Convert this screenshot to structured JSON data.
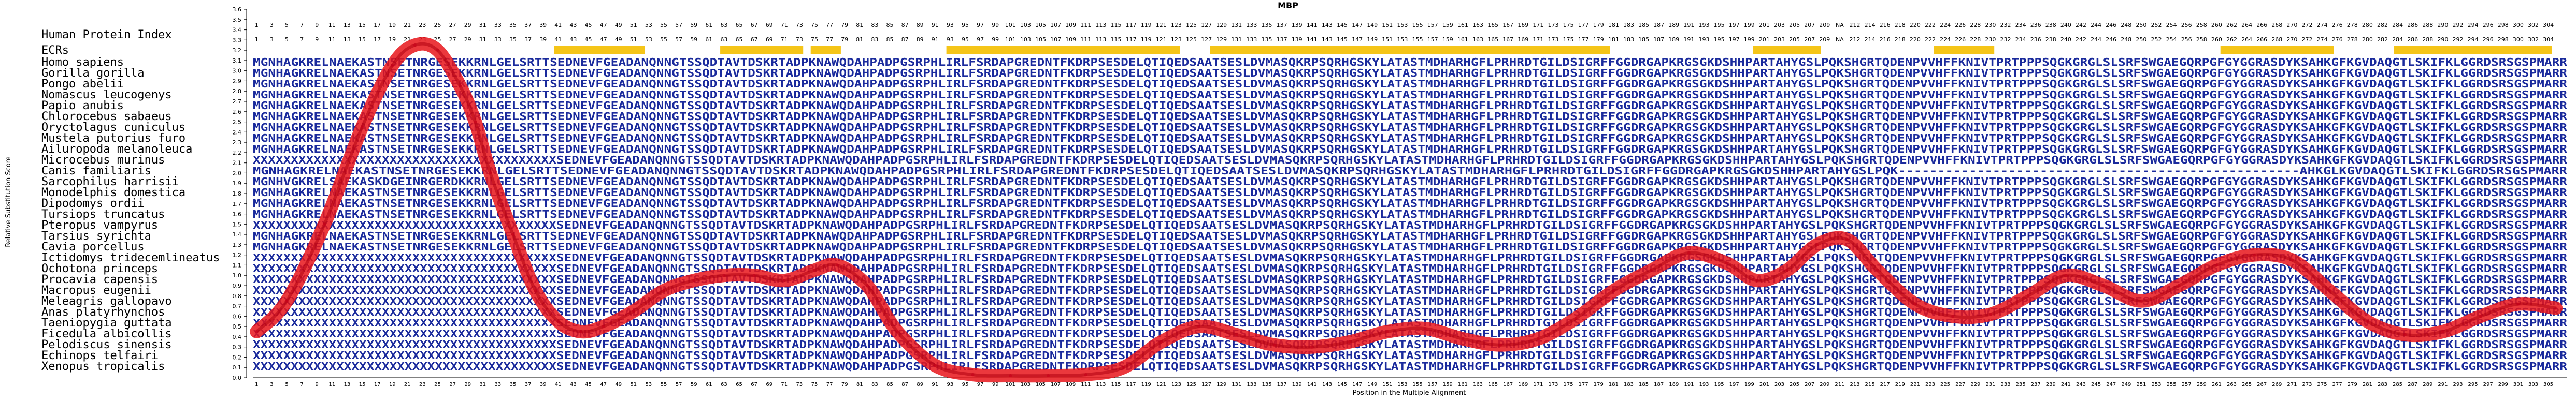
{
  "chart_data": {
    "type": "line",
    "title": "MBP",
    "xlabel": "Position in the Multiple Alignment",
    "ylabel": "Relative Substitution Score",
    "ylim": [
      0,
      3.6
    ],
    "yticks": [
      "0.0",
      "0.1",
      "0.2",
      "0.3",
      "0.4",
      "0.5",
      "0.6",
      "0.7",
      "0.8",
      "0.9",
      "1.0",
      "1.1",
      "1.2",
      "1.3",
      "1.4",
      "1.5",
      "1.6",
      "1.7",
      "1.8",
      "1.9",
      "2.0",
      "2.1",
      "2.2",
      "2.3",
      "2.4",
      "2.5",
      "2.6",
      "2.7",
      "2.8",
      "2.9",
      "3.0",
      "3.1",
      "3.2",
      "3.3",
      "3.4",
      "3.5",
      "3.6"
    ],
    "xlim": [
      1,
      307
    ],
    "label_headers": [
      "Human Protein Index",
      "ECRs"
    ],
    "top_index_labels": [
      "1",
      "3",
      "5",
      "7",
      "9",
      "11",
      "13",
      "15",
      "17",
      "19",
      "21",
      "23",
      "25",
      "27",
      "29",
      "31",
      "33",
      "35",
      "37",
      "39",
      "41",
      "43",
      "45",
      "47",
      "49",
      "51",
      "53",
      "55",
      "57",
      "59",
      "61",
      "63",
      "65",
      "67",
      "69",
      "71",
      "73",
      "75",
      "77",
      "79",
      "81",
      "83",
      "85",
      "87",
      "89",
      "91",
      "93",
      "95",
      "97",
      "99",
      "101",
      "103",
      "105",
      "107",
      "109",
      "111",
      "113",
      "115",
      "117",
      "119",
      "121",
      "123",
      "125",
      "127",
      "129",
      "131",
      "133",
      "135",
      "137",
      "139",
      "141",
      "143",
      "145",
      "147",
      "149",
      "151",
      "153",
      "155",
      "157",
      "159",
      "161",
      "163",
      "165",
      "167",
      "169",
      "171",
      "173",
      "175",
      "177",
      "179",
      "181",
      "183",
      "185",
      "187",
      "189",
      "191",
      "193",
      "195",
      "197",
      "199",
      "201",
      "203",
      "205",
      "207",
      "209",
      "NA",
      "212",
      "214",
      "216",
      "218",
      "220",
      "222",
      "224",
      "226",
      "228",
      "230",
      "232",
      "234",
      "236",
      "238",
      "240",
      "242",
      "244",
      "246",
      "248",
      "250",
      "252",
      "254",
      "256",
      "258",
      "260",
      "262",
      "264",
      "266",
      "268",
      "270",
      "272",
      "274",
      "276",
      "278",
      "280",
      "282",
      "284",
      "286",
      "288",
      "290",
      "292",
      "294",
      "296",
      "298",
      "300",
      "302",
      "304"
    ],
    "ecr_blocks": [
      [
        41,
        52
      ],
      [
        63,
        73
      ],
      [
        75,
        78
      ],
      [
        93,
        123
      ],
      [
        128,
        180
      ],
      [
        200,
        208
      ],
      [
        224,
        231
      ],
      [
        262,
        276
      ],
      [
        285,
        305
      ]
    ],
    "species": [
      "Homo sapiens",
      "Gorilla gorilla",
      "Pongo abelii",
      "Nomascus leucogenys",
      "Papio anubis",
      "Chlorocebus sabaeus",
      "Oryctolagus cuniculus",
      "Mustela putorius furo",
      "Ailuropoda melanoleuca",
      "Microcebus murinus",
      "Canis familiaris",
      "Sarcophilus harrisii",
      "Monodelphis domestica",
      "Dipodomys ordii",
      "Tursiops truncatus",
      "Pteropus vampyrus",
      "Tarsius syrichta",
      "Cavia porcellus",
      "Ictidomys tridecemlineatus",
      "Ochotona princeps",
      "Procavia capensis",
      "Macropus eugenii",
      "Meleagris gallopavo",
      "Anas platyrhynchos",
      "Taeniopygia guttata",
      "Ficedula albicollis",
      "Pelodiscus sinensis",
      "Echinops telfairi",
      "Xenopus tropicalis"
    ],
    "alignment_rows": [
      "MGNHAGKRELNAEKASTNSETNRGESEKKRNLGELSRTTSEDNEVFGEADANQNNGTSSQDTAVTDSKRTADPKNAWQDAHPADPGSRPHLIRLFSRDAPGREDNTFKDRPSESDELQTIQEDSAATSESLDVMASQKRPSQRHGSKYLATASTMDHARHGFLPRHRDTGILDSIGRFFGGDRGAPKRGSGKDSHHPARTAHYGSLPQKSHGRTQDENPVVHFFKNIVTPRTPPPSQGKGRGLSLSRFSWGAEGQRPGFGYGGRASDYKSAHKGFKGVDAQGTLSKIFKLGGRDSRSGSPMARR",
      "MGNHAGKRELNAEKASTNSETNRGESEKKRNLGELSRTTSEDNEVFGEADANQNNGTSSQDTAVTDSKRTADPKNAWQDAHPADPGSRPHLIRLFSRDAPGREDNTFKDRPSESDELQTIQEDSAATSESLDVMASQKRPSQRHGSKYLATASTMDHARHGFLPRHRDTGILDSIGRFFGGDRGAPKRGSGKDSHHPARTAHYGSLPQKSHGRTQDENPVVHFFKNIVTPRTPPPSQGKGRGLSLSRFSWGAEGQRPGFGYGGRASDYKSAHKGFKGVDAQGTLSKIFKLGGRDSRSGSPMARR",
      "MGNHAGKRELNAEKASTNSETNRGESEKKRNLGELSRTTSEDNEVFGEADANQNNGTSSQDTAVTDSKRTADPKNAWQDAHPADPGSRPHLIRLFSRDAPGREDNTFKDRPSESDELQTIQEDSAATSESLDVMASQKRPSQRHGSKYLATASTMDHARHGFLPRHRDTGILDSIGRFFGGDRGAPKRGSGKDSHHPARTAHYGSLPQKSHGRTQDENPVVHFFKNIVTPRTPPPSQGKGRGLSLSRFSWGAEGQRPGFGYGGRASDYKSAHKGFKGVDAQGTLSKIFKLGGRDSRSGSPMARR",
      "MGNHAGKRELNAEKASTNSETNRGESEKKRNLGELSRTTSEDNEVFGEADANQNNGTSSQDTAVTDSKRTADPKNAWQDAHPADPGSRPHLIRLFSRDAPGREDNTFKDRPSESDELQTIQEDSAATSESLDVMASQKRPSQRHGSKYLATASTMDHARHGFLPRHRDTGILDSIGRFFGGDRGAPKRGSGKDSHHPARTAHYGSLPQKSHGRTQDENPVVHFFKNIVTPRTPPPSQGKGRGLSLSRFSWGAEGQRPGFGYGGRASDYKSAHKGFKGVDAQGTLSKIFKLGGRDSRSGSPMARR",
      "MGNHAGKRELNAEKASTNSETNRGESEKKRNLGELSRTTSEDNEVFGEADANQNNGTSSQDTAVTDSKRTADPKNAWQDAHPADPGSRPHLIRLFSRDAPGREDNTFKDRPSESDELQTIQEDSAATSESLDVMASQKRPSQRHGSKYLATASTMDHARHGFLPRHRDTGILDSIGRFFGGDRGAPKRGSGKDSHHPARTAHYGSLPQKSHGRTQDENPVVHFFKNIVTPRTPPPSQGKGRGLSLSRFSWGAEGQRPGFGYGGRASDYKSAHKGFKGVDAQGTLSKIFKLGGRDSRSGSPMARR",
      "MGNHAGKRELNAEKASTNSETNRGESEKKRNLGELSRTTSEDNEVFGEADANQNNGTSSQDTAVTDSKRTADPKNAWQDAHPADPGSRPHLIRLFSRDAPGREDNTFKDRPSESDELQTIQEDSAATSESLDVMASQKRPSQRHGSKYLATASTMDHARHGFLPRHRDTGILDSIGRFFGGDRGAPKRGSGKDSHHPARTAHYGSLPQKSHGRTQDENPVVHFFKNIVTPRTPPPSQGKGRGLSLSRFSWGAEGQRPGFGYGGRASDYKSAHKGFKGVDAQGTLSKIFKLGGRDSRSGSPMARR",
      "MGNHAGKRELNAEKASTNSETNRGESEKKRNLGELSRTTSEDNEVFGEADANQNNGTSSQDTAVTDSKRTADPKNAWQDAHPADPGSRPHLIRLFSRDAPGREDNTFKDRPSESDELQTIQEDSAATSESLDVMASQKRPSQRHGSKYLATASTMDHARHGFLPRHRDTGILDSIGRFFGGDRGAPKRGSGKDSHHPARTAHYGSLPQKSHGRTQDENPVVHFFKNIVTPRTPPPSQGKGRGLSLSRFSWGAEGQRPGFGYGGRASDYKSAHKGFKGVDAQGTLSKIFKLGGRDSRSGSPMARR",
      "MGNHAGKRELNAEKASTNSETNRGESEKKRNLGELSRTTSEDNEVFGEADANQNNGTSSQDTAVTDSKRTADPKNAWQDAHPADPGSRPHLIRLFSRDAPGREDNTFKDRPSESDELQTIQEDSAATSESLDVMASQKRPSQRHGSKYLATASTMDHARHGFLPRHRDTGILDSIGRFFGGDRGAPKRGSGKDSHHPARTAHYGSLPQKSHGRTQDENPVVHFFKNIVTPRTPPPSQGKGRGLSLSRFSWGAEGQRPGFGYGGRASDYKSAHKGFKGVDAQGTLSKIFKLGGRDSRSGSPMARR",
      "MGNHAGKRELNAEKASTNSETNRGESEKKRNLGELSRTTSEDNEVFGEADANQNNGTSSQDTAVTDSKRTADPKNAWQDAHPADPGSRPHLIRLFSRDAPGREDNTFKDRPSESDELQTIQEDSAATSESLDVMASQKRPSQRHGSKYLATASTMDHARHGFLPRHRDTGILDSIGRFFGGDRGAPKRGSGKDSHHPARTAHYGSLPQKSHGRTQDENPVVHFFKNIVTPRTPPPSQGKGRGLSLSRFSWGAEGQRPGFGYGGRASDYKSAHKGFKGVDAQGTLSKIFKLGGRDSRSGSPMARR",
      "XXXXXXXXXXXXXXXXXXXXXXXXXXXXXXXXXXXXXXXXSEDNEVFGEADANQNNGTSSQDTAVTDSKRTADPKNAWQDAHPADPGSRPHLIRLFSRDAPGREDNTFKDRPSESDELQTIQEDSAATSESLDVMASQKRPSQRHGSKYLATASTMDHARHGFLPRHRDTGILDSIGRFFGGDRGAPKRGSGKDSHHPARTAHYGSLPQKSHGRTQDENPVVHFFKNIVTPRTPPPSQGKGRGLSLSRFSWGAEGQRPGFGYGGRASDYKSAHKGFKGVDAQGTLSKIFKLGGRDSRSGSPMARR",
      "MGNHAGKRELNAEKASTNSETNRGESEKKRNLGELSRTTSEDNEVFGEADANQNNGTSSQDTAVTDSKRTADPKNAWQDAHPADPGSRPHLIRLFSRDAPGREDNTFKDRPSESDELQTIQEDSAATSESLDVMASQKRPSQRHGSKYLATASTMDHARHGFLPRHRDTGILDSIGRFFGGDRGAPKRGSGKDSHHPARTAHYGSLPQK---------------------------------------------------AHKGLKGVDAQGTLSKIFKLGGRDSRSGSPMARR",
      "MGNHVGKRELSAEKASKDGEINRGERDKKRNLGELSRTTSEDNEVFGEADANQNNGTSSQDTAVTDSKRTADPKNAWQDAHPADPGSRPHLIRLFSRDAPGREDNTFKDRPSESDELQTIQEDSAATSESLDVMASQKRPSQRHGSKYLATASTMDHARHGFLPRHRDTGILDSIGRFFGGDRGAPKRGSGKDSHHPARTAHYGSLPQKSHGRTQDENPVVHFFKNIVTPRTPPPSQGKGRGLSLSRFSWGAEGQRPGFGYGGRASDYKSAHKGFKGVDAQGTLSKIFKLGGRDSRSGSPMARR",
      "MGNHAGKRELNAEKASTNSETNRGESEKKRNLGELSRTTSEDNEVFGEADANQNNGTSSQDTAVTDSKRTADPKNAWQDAHPADPGSRPHLIRLFSRDAPGREDNTFKDRPSESDELQTIQEDSAATSESLDVMASQKRPSQRHGSKYLATASTMDHARHGFLPRHRDTGILDSIGRFFGGDRGAPKRGSGKDSHHPARTAHYGSLPQKSHGRTQDENPVVHFFKNIVTPRTPPPSQGKGRGLSLSRFSWGAEGQRPGFGYGGRASDYKSAHKGFKGVDAQGTLSKIFKLGGRDSRSGSPMARR",
      "MGNHAGKRELNAEKASTNSETNRGESEKKRNLGELSRTTSEDNEVFGEADANQNNGTSSQDTAVTDSKRTADPKNAWQDAHPADPGSRPHLIRLFSRDAPGREDNTFKDRPSESDELQTIQEDSAATSESLDVMASQKRPSQRHGSKYLATASTMDHARHGFLPRHRDTGILDSIGRFFGGDRGAPKRGSGKDSHHPARTAHYGSLPQKSHGRTQDENPVVHFFKNIVTPRTPPPSQGKGRGLSLSRFSWGAEGQRPGFGYGGRASDYKSAHKGFKGVDAQGTLSKIFKLGGRDSRSGSPMARR",
      "MGNHAGKRELNAEKASTNSETNRGESEKKRNLGELSRTTSEDNEVFGEADANQNNGTSSQDTAVTDSKRTADPKNAWQDAHPADPGSRPHLIRLFSRDAPGREDNTFKDRPSESDELQTIQEDSAATSESLDVMASQKRPSQRHGSKYLATASTMDHARHGFLPRHRDTGILDSIGRFFGGDRGAPKRGSGKDSHHPARTAHYGSLPQKSHGRTQDENPVVHFFKNIVTPRTPPPSQGKGRGLSLSRFSWGAEGQRPGFGYGGRASDYKSAHKGFKGVDAQGTLSKIFKLGGRDSRSGSPMARR",
      "XXXXXXXXXXXXXXXXXXXXXXXXXXXXXXXXXXXXXXXXSEDNEVFGEADANQNNGTSSQDTAVTDSKRTADPKNAWQDAHPADPGSRPHLIRLFSRDAPGREDNTFKDRPSESDELQTIQEDSAATSESLDVMASQKRPSQRHGSKYLATASTMDHARHGFLPRHRDTGILDSIGRFFGGDRGAPKRGSGKDSHHPARTAHYGSLPQKSHGRTQDENPVVHFFKNIVTPRTPPPSQGKGRGLSLSRFSWGAEGQRPGFGYGGRASDYKSAHKGFKGVDAQGTLSKIFKLGGRDSRSGSPMARR",
      "MGNHAGKRELNAEKASTNSETNRGESEKKRNLGELSRTTSEDNEVFGEADANQNNGTSSQDTAVTDSKRTADPKNAWQDAHPADPGSRPHLIRLFSRDAPGREDNTFKDRPSESDELQTIQEDSAATSESLDVMASQKRPSQRHGSKYLATASTMDHARHGFLPRHRDTGILDSIGRFFGGDRGAPKRGSGKDSHHPARTAHYGSLPQKSHGRTQDENPVVHFFKNIVTPRTPPPSQGKGRGLSLSRFSWGAEGQRPGFGYGGRASDYKSAHKGFKGVDAQGTLSKIFKLGGRDSRSGSPMARR",
      "MGNHAGKRELNAEKASTNSETNRGESEKKRNLGELSRTTSEDNEVFGEADANQNNGTSSQDTAVTDSKRTADPKNAWQDAHPADPGSRPHLIRLFSRDAPGREDNTFKDRPSESDELQTIQEDSAATSESLDVMASQKRPSQRHGSKYLATASTMDHARHGFLPRHRDTGILDSIGRFFGGDRGAPKRGSGKDSHHPARTAHYGSLPQKSHGRTQDENPVVHFFKNIVTPRTPPPSQGKGRGLSLSRFSWGAEGQRPGFGYGGRASDYKSAHKGFKGVDAQGTLSKIFKLGGRDSRSGSPMARR",
      "XXXXXXXXXXXXXXXXXXXXXXXXXXXXXXXXXXXXXXXXSEDNEVFGEADANQNNGTSSQDTAVTDSKRTADPKNAWQDAHPADPGSRPHLIRLFSRDAPGREDNTFKDRPSESDELQTIQEDSAATSESLDVMASQKRPSQRHGSKYLATASTMDHARHGFLPRHRDTGILDSIGRFFGGDRGAPKRGSGKDSHHPARTAHYGSLPQKSHGRTQDENPVVHFFKNIVTPRTPPPSQGKGRGLSLSRFSWGAEGQRPGFGYGGRASDYKSAHKGFKGVDAQGTLSKIFKLGGRDSRSGSPMARR",
      "XXXXXXXXXXXXXXXXXXXXXXXXXXXXXXXXXXXXXXXXSEDNEVFGEADANQNNGTSSQDTAVTDSKRTADPKNAWQDAHPADPGSRPHLIRLFSRDAPGREDNTFKDRPSESDELQTIQEDSAATSESLDVMASQKRPSQRHGSKYLATASTMDHARHGFLPRHRDTGILDSIGRFFGGDRGAPKRGSGKDSHHPARTAHYGSLPQKSHGRTQDENPVVHFFKNIVTPRTPPPSQGKGRGLSLSRFSWGAEGQRPGFGYGGRASDYKSAHKGFKGVDAQGTLSKIFKLGGRDSRSGSPMARR",
      "XXXXXXXXXXXXXXXXXXXXXXXXXXXXXXXXXXXXXXXXSEDNEVFGEADANQNNGTSSQDTAVTDSKRTADPKNAWQDAHPADPGSRPHLIRLFSRDAPGREDNTFKDRPSESDELQTIQEDSAATSESLDVMASQKRPSQRHGSKYLATASTMDHARHGFLPRHRDTGILDSIGRFFGGDRGAPKRGSGKDSHHPARTAHYGSLPQKSHGRTQDENPVVHFFKNIVTPRTPPPSQGKGRGLSLSRFSWGAEGQRPGFGYGGRASDYKSAHKGFKGVDAQGTLSKIFKLGGRDSRSGSPMARR",
      "XXXXXXXXXXXXXXXXXXXXXXXXXXXXXXXXXXXXXXXXSEDNEVFGEADANQNNGTSSQDTAVTDSKRTADPKNAWQDAHPADPGSRPHLIRLFSRDAPGREDNTFKDRPSESDELQTIQEDSAATSESLDVMASQKRPSQRHGSKYLATASTMDHARHGFLPRHRDTGILDSIGRFFGGDRGAPKRGSGKDSHHPARTAHYGSLPQKSHGRTQDENPVVHFFKNIVTPRTPPPSQGKGRGLSLSRFSWGAEGQRPGFGYGGRASDYKSAHKGFKGVDAQGTLSKIFKLGGRDSRSGSPMARR",
      "XXXXXXXXXXXXXXXXXXXXXXXXXXXXXXXXXXXXXXXXSEDNEVFGEADANQNNGTSSQDTAVTDSKRTADPKNAWQDAHPADPGSRPHLIRLFSRDAPGREDNTFKDRPSESDELQTIQEDSAATSESLDVMASQKRPSQRHGSKYLATASTMDHARHGFLPRHRDTGILDSIGRFFGGDRGAPKRGSGKDSHHPARTAHYGSLPQKSHGRTQDENPVVHFFKNIVTPRTPPPSQGKGRGLSLSRFSWGAEGQRPGFGYGGRASDYKSAHKGFKGVDAQGTLSKIFKLGGRDSRSGSPMARR",
      "XXXXXXXXXXXXXXXXXXXXXXXXXXXXXXXXXXXXXXXXSEDNEVFGEADANQNNGTSSQDTAVTDSKRTADPKNAWQDAHPADPGSRPHLIRLFSRDAPGREDNTFKDRPSESDELQTIQEDSAATSESLDVMASQKRPSQRHGSKYLATASTMDHARHGFLPRHRDTGILDSIGRFFGGDRGAPKRGSGKDSHHPARTAHYGSLPQKSHGRTQDENPVVHFFKNIVTPRTPPPSQGKGRGLSLSRFSWGAEGQRPGFGYGGRASDYKSAHKGFKGVDAQGTLSKIFKLGGRDSRSGSPMARR",
      "XXXXXXXXXXXXXXXXXXXXXXXXXXXXXXXXXXXXXXXXSEDNEVFGEADANQNNGTSSQDTAVTDSKRTADPKNAWQDAHPADPGSRPHLIRLFSRDAPGREDNTFKDRPSESDELQTIQEDSAATSESLDVMASQKRPSQRHGSKYLATASTMDHARHGFLPRHRDTGILDSIGRFFGGDRGAPKRGSGKDSHHPARTAHYGSLPQKSHGRTQDENPVVHFFKNIVTPRTPPPSQGKGRGLSLSRFSWGAEGQRPGFGYGGRASDYKSAHKGFKGVDAQGTLSKIFKLGGRDSRSGSPMARR",
      "XXXXXXXXXXXXXXXXXXXXXXXXXXXXXXXXXXXXXXXXSEDNEVFGEADANQNNGTSSQDTAVTDSKRTADPKNAWQDAHPADPGSRPHLIRLFSRDAPGREDNTFKDRPSESDELQTIQEDSAATSESLDVMASQKRPSQRHGSKYLATASTMDHARHGFLPRHRDTGILDSIGRFFGGDRGAPKRGSGKDSHHPARTAHYGSLPQKSHGRTQDENPVVHFFKNIVTPRTPPPSQGKGRGLSLSRFSWGAEGQRPGFGYGGRASDYKSAHKGFKGVDAQGTLSKIFKLGGRDSRSGSPMARR",
      "XXXXXXXXXXXXXXXXXXXXXXXXXXXXXXXXXXXXXXXXSEDNEVFGEADANQNNGTSSQDTAVTDSKRTADPKNAWQDAHPADPGSRPHLIRLFSRDAPGREDNTFKDRPSESDELQTIQEDSAATSESLDVMASQKRPSQRHGSKYLATASTMDHARHGFLPRHRDTGILDSIGRFFGGDRGAPKRGSGKDSHHPARTAHYGSLPQKSHGRTQDENPVVHFFKNIVTPRTPPPSQGKGRGLSLSRFSWGAEGQRPGFGYGGRASDYKSAHKGFKGVDAQGTLSKIFKLGGRDSRSGSPMARR",
      "XXXXXXXXXXXXXXXXXXXXXXXXXXXXXXXXXXXXXXXXSEDNEVFGEADANQNNGTSSQDTAVTDSKRTADPKNAWQDAHPADPGSRPHLIRLFSRDAPGREDNTFKDRPSESDELQTIQEDSAATSESLDVMASQKRPSQRHGSKYLATASTMDHARHGFLPRHRDTGILDSIGRFFGGDRGAPKRGSGKDSHHPARTAHYGSLPQKSHGRTQDENPVVHFFKNIVTPRTPPPSQGKGRGLSLSRFSWGAEGQRPGFGYGGRASDYKSAHKGFKGVDAQGTLSKIFKLGGRDSRSGSPMARR",
      "XXXXXXXXXXXXXXXXXXXXXXXXXXXXXXXXXXXXXXXXSEDNEVFGEADANQNNGTSSQDTAVTDSKRTADPKNAWQDAHPADPGSRPHLIRLFSRDAPGREDNTFKDRPSESDELQTIQEDSAATSESLDVMASQKRPSQRHGSKYLATASTMDHARHGFLPRHRDTGILDSIGRFFGGDRGAPKRGSGKDSHHPARTAHYGSLPQKSHGRTQDENPVVHFFKNIVTPRTPPPSQGKGRGLSLSRFSWGAEGQRPGFGYGGRASDYKSAHKGFKGVDAQGTLSKIFKLGGRDSRSGSPMARR"
    ],
    "series": [
      {
        "x": [
          1,
          5,
          10,
          15,
          19,
          22,
          25,
          28,
          30,
          32,
          35,
          38,
          41,
          44,
          47,
          51,
          55,
          59,
          63,
          67,
          71,
          75,
          78,
          82,
          86,
          91,
          96,
          101,
          106,
          111,
          116,
          121,
          126,
          131,
          136,
          141,
          146,
          151,
          156,
          161,
          166,
          171,
          176,
          181,
          186,
          191,
          196,
          200,
          204,
          208,
          212,
          216,
          221,
          226,
          231,
          236,
          241,
          246,
          251,
          256,
          261,
          266,
          271,
          276,
          281,
          286,
          291,
          296,
          301,
          306
        ],
        "y": [
          0.45,
          0.75,
          1.5,
          2.45,
          3.05,
          3.25,
          3.2,
          2.85,
          2.5,
          2.0,
          1.4,
          0.85,
          0.55,
          0.45,
          0.5,
          0.65,
          0.85,
          0.95,
          1.0,
          1.0,
          0.95,
          1.05,
          1.1,
          0.9,
          0.45,
          0.12,
          0.03,
          0.02,
          0.02,
          0.03,
          0.1,
          0.35,
          0.5,
          0.42,
          0.32,
          0.3,
          0.35,
          0.45,
          0.48,
          0.38,
          0.32,
          0.38,
          0.58,
          0.85,
          1.05,
          1.22,
          1.12,
          0.95,
          1.05,
          1.3,
          1.35,
          1.05,
          0.72,
          0.6,
          0.62,
          0.8,
          1.0,
          0.9,
          0.75,
          0.9,
          1.1,
          1.2,
          1.15,
          0.85,
          0.55,
          0.42,
          0.45,
          0.6,
          0.72,
          0.68
        ]
      }
    ]
  }
}
